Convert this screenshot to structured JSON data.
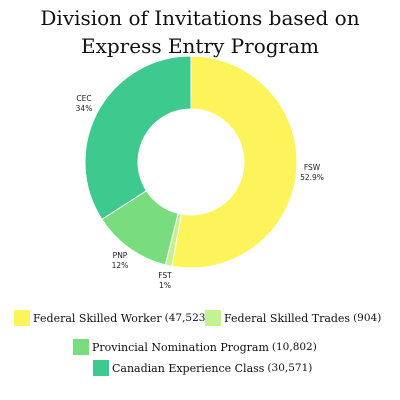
{
  "colors": {
    "fsw": "#fdf35a",
    "fst": "#c3f291",
    "pnp": "#79dd7f",
    "cec": "#3ec98e"
  },
  "chart_data": {
    "type": "pie",
    "title": "Division of Invitations based on Express Entry Program",
    "slices": [
      {
        "key": "fsw",
        "label": "FSW",
        "percent": "52.9%",
        "share": 0.529
      },
      {
        "key": "fst",
        "label": "FST",
        "percent": "1%",
        "share": 0.01
      },
      {
        "key": "pnp",
        "label": "PNP",
        "percent": "12%",
        "share": 0.12
      },
      {
        "key": "cec",
        "label": "CEC",
        "percent": "34%",
        "share": 0.341
      }
    ],
    "legend": [
      {
        "key": "fsw",
        "name": "Federal Skilled Worker",
        "count": "(47,523)"
      },
      {
        "key": "fst",
        "name": "Federal Skilled Trades",
        "count": "(904)"
      },
      {
        "key": "pnp",
        "name": "Provincial Nomination Program",
        "count": "(10,802)"
      },
      {
        "key": "cec",
        "name": "Canadian Experience Class",
        "count": "(30,571)"
      }
    ]
  }
}
